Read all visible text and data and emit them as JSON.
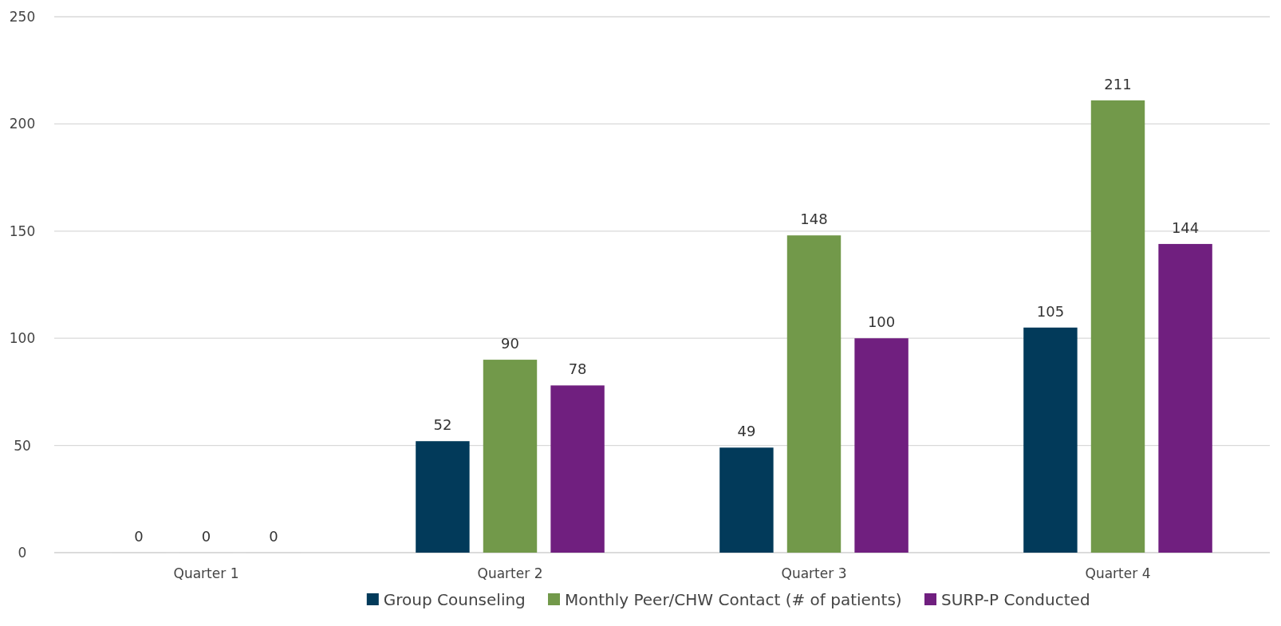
{
  "chart_data": {
    "type": "bar",
    "categories": [
      "Quarter 1",
      "Quarter 2",
      "Quarter 3",
      "Quarter 4"
    ],
    "series": [
      {
        "name": "Group Counseling",
        "color": "#023a5a",
        "values": [
          0,
          52,
          49,
          105
        ]
      },
      {
        "name": "Monthly Peer/CHW Contact (# of patients)",
        "color": "#72994a",
        "values": [
          0,
          90,
          148,
          211
        ]
      },
      {
        "name": "SURP-P Conducted",
        "color": "#701f7f",
        "values": [
          0,
          78,
          100,
          144
        ]
      }
    ],
    "ylim": [
      0,
      250
    ],
    "yticks": [
      0,
      50,
      100,
      150,
      200,
      250
    ],
    "grid": "y",
    "legend": "bottom",
    "data_labels": true
  }
}
